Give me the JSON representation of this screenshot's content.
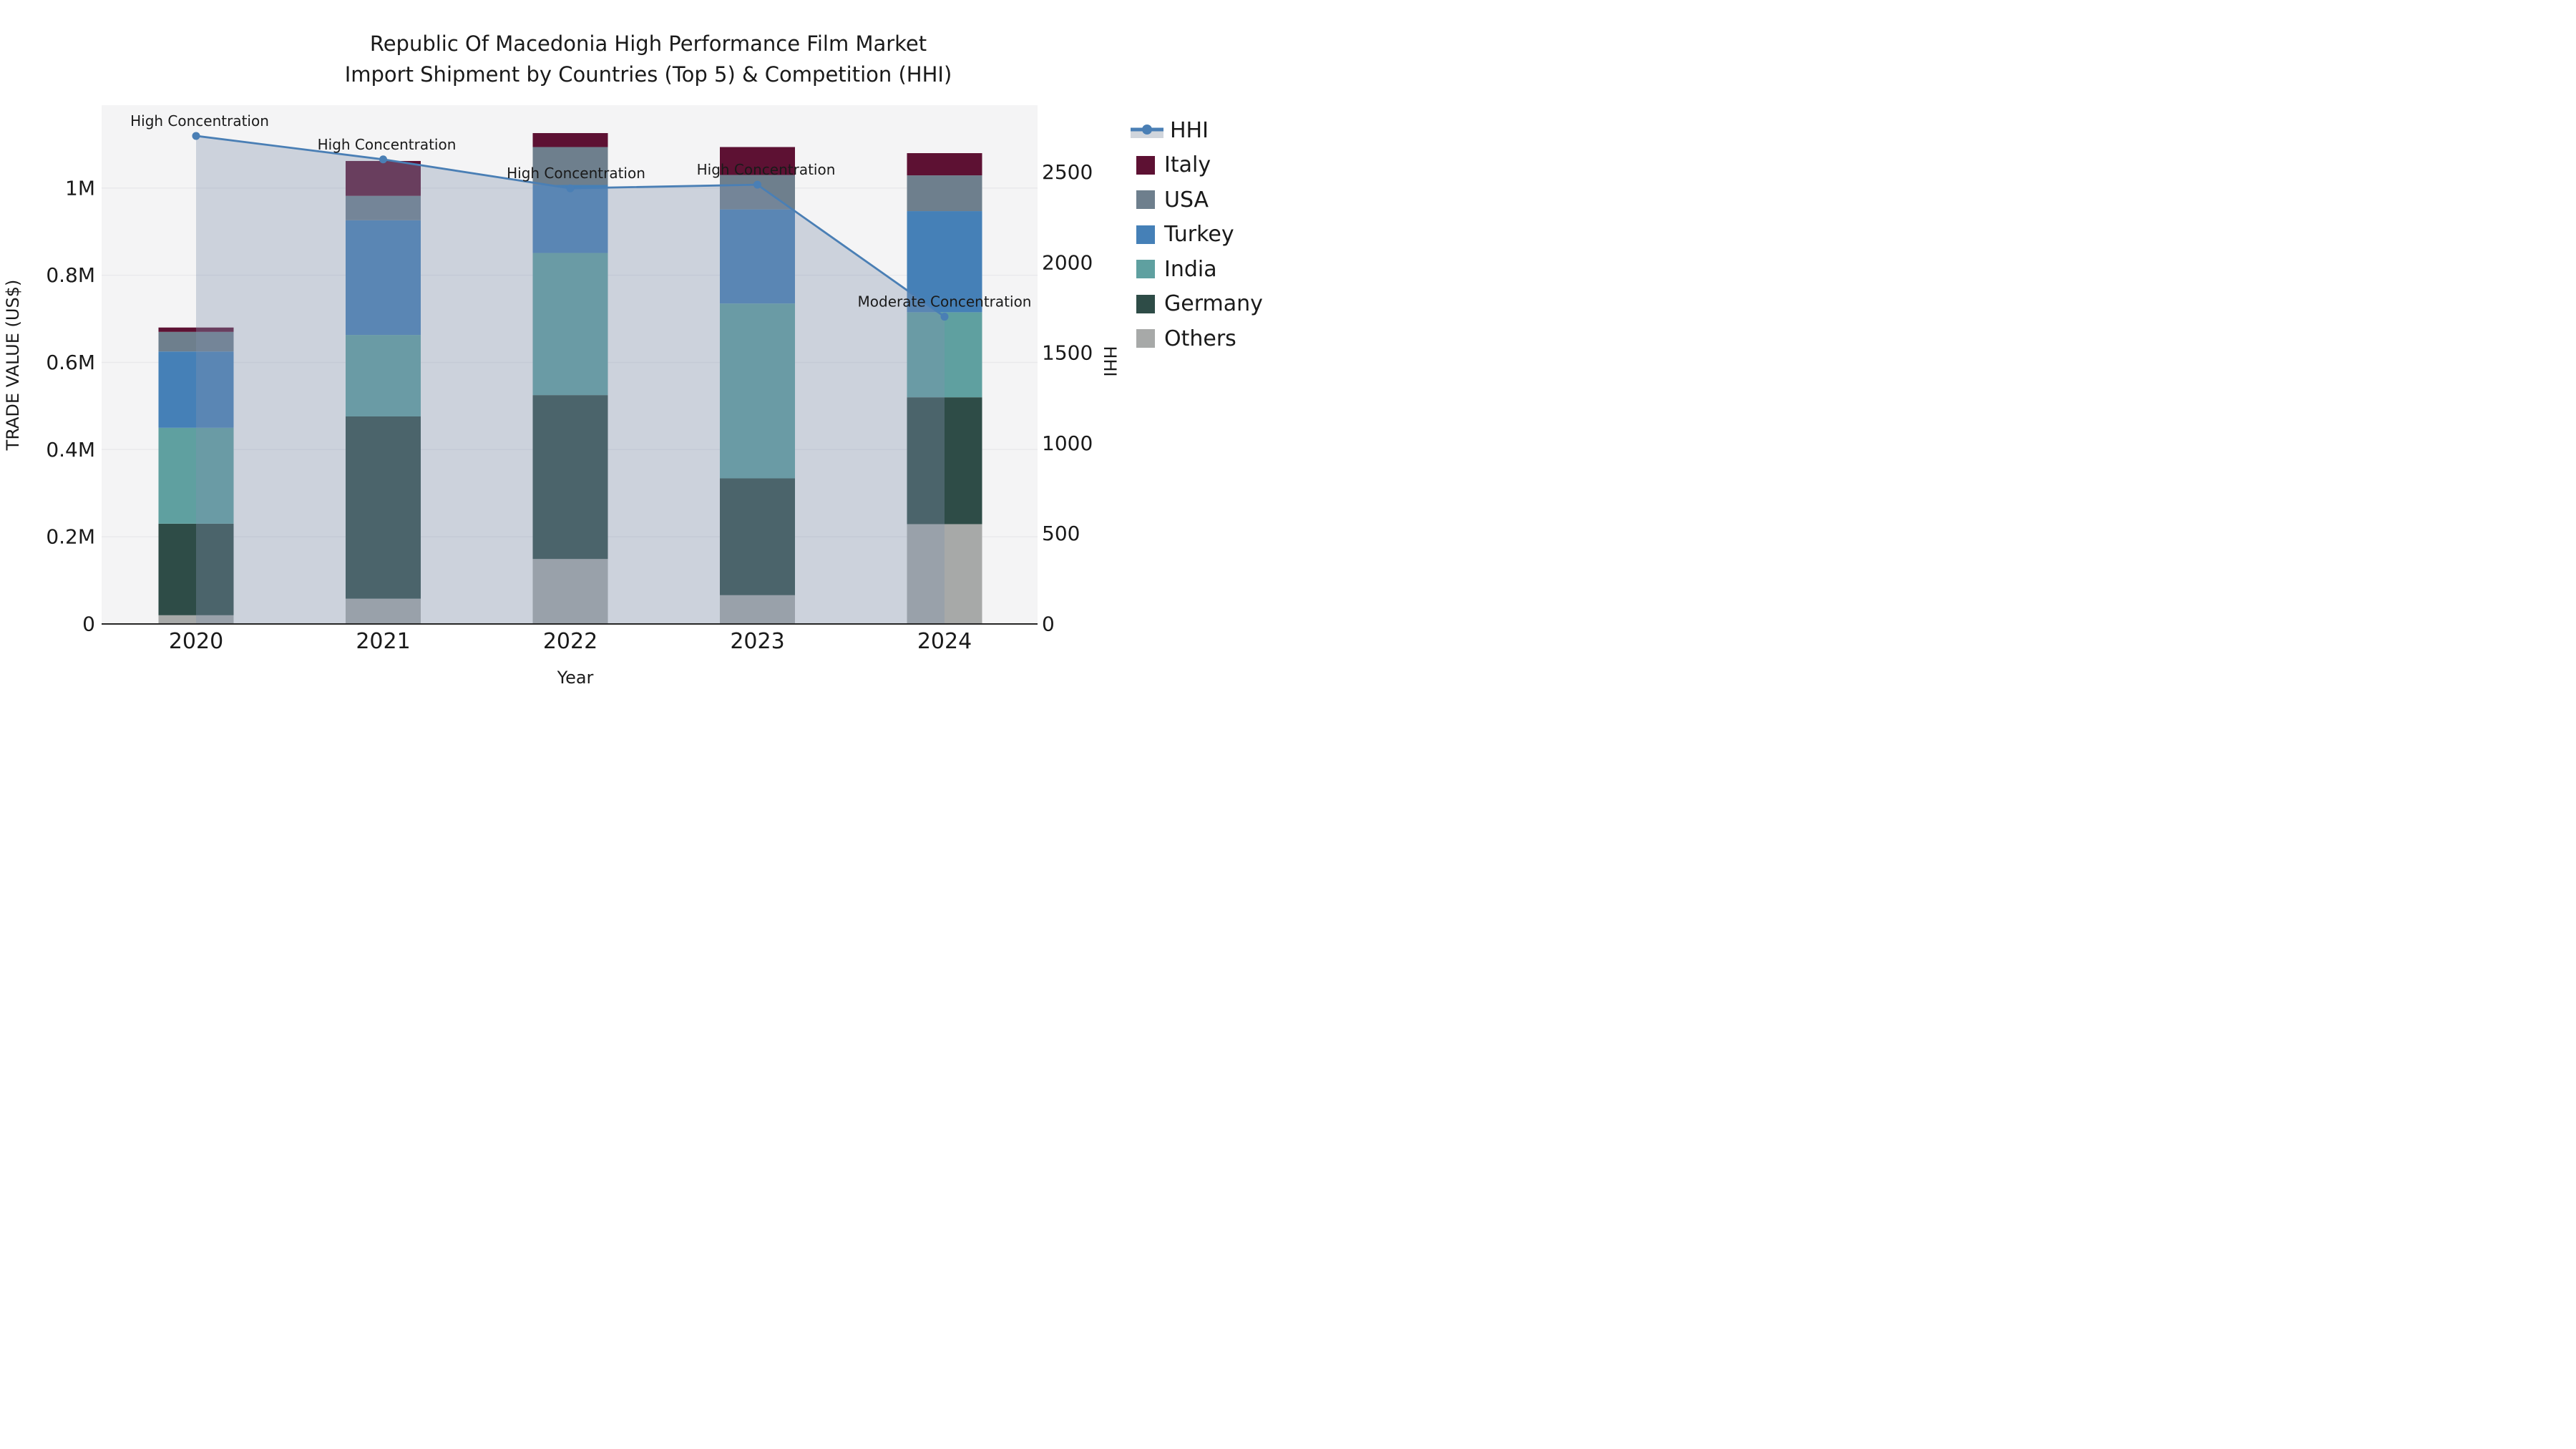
{
  "title": {
    "line1": "Republic Of Macedonia High Performance Film Market",
    "line2": "Import Shipment by Countries (Top 5) & Competition (HHI)"
  },
  "colors": {
    "plot_bg": "#f4f4f5",
    "grid": "#e9e9ec",
    "axis_line": "#262626",
    "text": "#1a1a1a",
    "hhi_line": "#4a7fb5",
    "hhi_area": "rgba(130,145,175,0.35)",
    "legend_area_band": "#d0d5dc"
  },
  "chart_data": {
    "type": "bar",
    "subtype": "stacked-bars-with-line",
    "x": {
      "label": "Year",
      "categories": [
        "2020",
        "2021",
        "2022",
        "2023",
        "2024"
      ]
    },
    "y_left": {
      "label": "TRADE VALUE (US$)",
      "tick_labels": [
        "0",
        "0.2M",
        "0.4M",
        "0.6M",
        "0.8M",
        "1M"
      ],
      "tick_values": [
        0,
        200000,
        400000,
        600000,
        800000,
        1000000
      ],
      "max": 1190000
    },
    "y_right": {
      "label": "HHI",
      "tick_labels": [
        "0",
        "500",
        "1000",
        "1500",
        "2000",
        "2500"
      ],
      "tick_values": [
        0,
        500,
        1000,
        1500,
        2000,
        2500
      ],
      "max": 2870
    },
    "stack_order_bottom_to_top": [
      "Others",
      "Germany",
      "India",
      "Turkey",
      "USA",
      "Italy"
    ],
    "series": [
      {
        "name": "Others",
        "color": "#a7a9a8",
        "values": [
          20000,
          58000,
          149000,
          66000,
          229000
        ]
      },
      {
        "name": "Germany",
        "color": "#2e4c47",
        "values": [
          210000,
          418000,
          376000,
          268000,
          291000
        ]
      },
      {
        "name": "India",
        "color": "#5fa0a0",
        "values": [
          220000,
          187000,
          326000,
          401000,
          195000
        ]
      },
      {
        "name": "Turkey",
        "color": "#4580b7",
        "values": [
          175000,
          263000,
          156000,
          216000,
          232000
        ]
      },
      {
        "name": "USA",
        "color": "#6e7f8d",
        "values": [
          45000,
          56000,
          87000,
          79000,
          82000
        ]
      },
      {
        "name": "Italy",
        "color": "#5d1133",
        "values": [
          10000,
          80000,
          32000,
          64000,
          51000
        ]
      }
    ],
    "hhi": {
      "name": "HHI",
      "values": [
        2700,
        2570,
        2410,
        2430,
        1700
      ]
    },
    "annotations": [
      {
        "x": "2020",
        "text": "High Concentration"
      },
      {
        "x": "2021",
        "text": "High Concentration"
      },
      {
        "x": "2022",
        "text": "High Concentration"
      },
      {
        "x": "2023",
        "text": "High Concentration"
      },
      {
        "x": "2024",
        "text": "Moderate Concentration"
      }
    ],
    "legend_order": [
      "HHI",
      "Italy",
      "USA",
      "Turkey",
      "India",
      "Germany",
      "Others"
    ],
    "grid": "horizontal",
    "legend_position": "right"
  }
}
